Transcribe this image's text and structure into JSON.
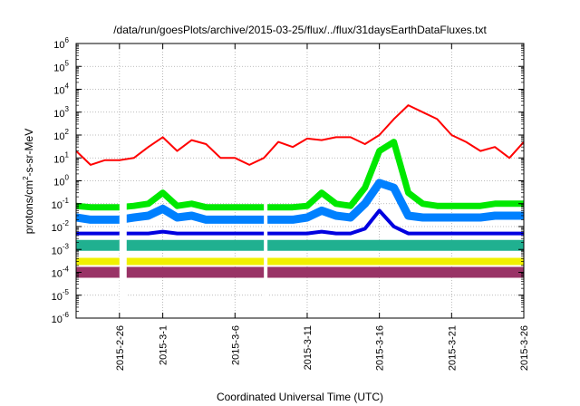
{
  "chart_data": {
    "type": "line",
    "title": "/data/run/goesPlots/archive/2015-03-25/flux/../flux/31daysEarthDataFluxes.txt",
    "xlabel": "Coordinated Universal Time (UTC)",
    "ylabel": "protons/cm2-s-sr-MeV",
    "ylabel_parts": {
      "main": "protons/cm",
      "sup": "2",
      "rest": "-s-sr-MeV"
    },
    "yscale": "log",
    "ylim_exp": [
      -6,
      6
    ],
    "y_tick_labels": [
      {
        "base": "10",
        "exp": "-6"
      },
      {
        "base": "10",
        "exp": "-5"
      },
      {
        "base": "10",
        "exp": "-4"
      },
      {
        "base": "10",
        "exp": "-3"
      },
      {
        "base": "10",
        "exp": "-2"
      },
      {
        "base": "10",
        "exp": "-1"
      },
      {
        "base": "10",
        "exp": "0"
      },
      {
        "base": "10",
        "exp": "1"
      },
      {
        "base": "10",
        "exp": "2"
      },
      {
        "base": "10",
        "exp": "3"
      },
      {
        "base": "10",
        "exp": "4"
      },
      {
        "base": "10",
        "exp": "5"
      },
      {
        "base": "10",
        "exp": "6"
      }
    ],
    "xlim": [
      "2015-02-23",
      "2015-03-26"
    ],
    "x_tick_labels": [
      {
        "label": "2015-2-26",
        "date": "2015-02-26"
      },
      {
        "label": "2015-3-1",
        "date": "2015-03-01"
      },
      {
        "label": "2015-3-6",
        "date": "2015-03-06"
      },
      {
        "label": "2015-3-11",
        "date": "2015-03-11"
      },
      {
        "label": "2015-3-16",
        "date": "2015-03-16"
      },
      {
        "label": "2015-3-21",
        "date": "2015-03-21"
      },
      {
        "label": "2015-3-26",
        "date": "2015-03-26"
      }
    ],
    "grid": true,
    "legend": "none",
    "data_gaps": [
      [
        "2015-02-26",
        "2015-02-26 12:00"
      ],
      [
        "2015-03-08",
        "2015-03-08 06:00"
      ]
    ],
    "series": [
      {
        "color": "#ff0000",
        "x": [
          "2015-02-23",
          "2015-02-24",
          "2015-02-25",
          "2015-02-26",
          "2015-02-27",
          "2015-02-28",
          "2015-03-01",
          "2015-03-02",
          "2015-03-03",
          "2015-03-04",
          "2015-03-05",
          "2015-03-06",
          "2015-03-07",
          "2015-03-08",
          "2015-03-09",
          "2015-03-10",
          "2015-03-11",
          "2015-03-12",
          "2015-03-13",
          "2015-03-14",
          "2015-03-15",
          "2015-03-16",
          "2015-03-17",
          "2015-03-18",
          "2015-03-19",
          "2015-03-20",
          "2015-03-21",
          "2015-03-22",
          "2015-03-23",
          "2015-03-24",
          "2015-03-25",
          "2015-03-26"
        ],
        "y": [
          20,
          5,
          8,
          8,
          10,
          30,
          80,
          20,
          60,
          40,
          10,
          10,
          5,
          10,
          50,
          30,
          70,
          60,
          80,
          80,
          40,
          100,
          500,
          2000,
          1000,
          500,
          100,
          50,
          20,
          30,
          10,
          50
        ]
      },
      {
        "color": "#00e800",
        "x": [
          "2015-02-23",
          "2015-02-24",
          "2015-02-25",
          "2015-02-26",
          "2015-02-27",
          "2015-02-28",
          "2015-03-01",
          "2015-03-02",
          "2015-03-03",
          "2015-03-04",
          "2015-03-05",
          "2015-03-06",
          "2015-03-07",
          "2015-03-08",
          "2015-03-09",
          "2015-03-10",
          "2015-03-11",
          "2015-03-12",
          "2015-03-13",
          "2015-03-14",
          "2015-03-15",
          "2015-03-16",
          "2015-03-17",
          "2015-03-18",
          "2015-03-19",
          "2015-03-20",
          "2015-03-21",
          "2015-03-22",
          "2015-03-23",
          "2015-03-24",
          "2015-03-25",
          "2015-03-26"
        ],
        "y": [
          0.08,
          0.07,
          0.07,
          0.07,
          0.08,
          0.1,
          0.3,
          0.08,
          0.1,
          0.07,
          0.07,
          0.07,
          0.07,
          0.07,
          0.07,
          0.07,
          0.08,
          0.3,
          0.1,
          0.08,
          0.5,
          20,
          50,
          0.3,
          0.1,
          0.08,
          0.08,
          0.08,
          0.08,
          0.1,
          0.1,
          0.1
        ]
      },
      {
        "color": "#0080ff",
        "x": [
          "2015-02-23",
          "2015-02-24",
          "2015-02-25",
          "2015-02-26",
          "2015-02-27",
          "2015-02-28",
          "2015-03-01",
          "2015-03-02",
          "2015-03-03",
          "2015-03-04",
          "2015-03-05",
          "2015-03-06",
          "2015-03-07",
          "2015-03-08",
          "2015-03-09",
          "2015-03-10",
          "2015-03-11",
          "2015-03-12",
          "2015-03-13",
          "2015-03-14",
          "2015-03-15",
          "2015-03-16",
          "2015-03-17",
          "2015-03-18",
          "2015-03-19",
          "2015-03-20",
          "2015-03-21",
          "2015-03-22",
          "2015-03-23",
          "2015-03-24",
          "2015-03-25",
          "2015-03-26"
        ],
        "y": [
          0.025,
          0.02,
          0.02,
          0.02,
          0.025,
          0.03,
          0.06,
          0.025,
          0.03,
          0.02,
          0.02,
          0.02,
          0.02,
          0.02,
          0.02,
          0.02,
          0.025,
          0.05,
          0.03,
          0.025,
          0.1,
          0.8,
          0.5,
          0.03,
          0.025,
          0.025,
          0.025,
          0.025,
          0.025,
          0.03,
          0.03,
          0.03
        ]
      },
      {
        "color": "#0000e0",
        "x": [
          "2015-02-23",
          "2015-02-24",
          "2015-02-25",
          "2015-02-26",
          "2015-02-27",
          "2015-02-28",
          "2015-03-01",
          "2015-03-02",
          "2015-03-03",
          "2015-03-04",
          "2015-03-05",
          "2015-03-06",
          "2015-03-07",
          "2015-03-08",
          "2015-03-09",
          "2015-03-10",
          "2015-03-11",
          "2015-03-12",
          "2015-03-13",
          "2015-03-14",
          "2015-03-15",
          "2015-03-16",
          "2015-03-17",
          "2015-03-18",
          "2015-03-19",
          "2015-03-20",
          "2015-03-21",
          "2015-03-22",
          "2015-03-23",
          "2015-03-24",
          "2015-03-25",
          "2015-03-26"
        ],
        "y": [
          0.005,
          0.005,
          0.005,
          0.005,
          0.005,
          0.005,
          0.006,
          0.005,
          0.005,
          0.005,
          0.005,
          0.005,
          0.005,
          0.005,
          0.005,
          0.005,
          0.005,
          0.006,
          0.005,
          0.005,
          0.008,
          0.05,
          0.01,
          0.005,
          0.005,
          0.005,
          0.005,
          0.005,
          0.005,
          0.005,
          0.005,
          0.005
        ]
      },
      {
        "color": "#20b090",
        "x": [
          "2015-02-23",
          "2015-03-26"
        ],
        "y": [
          0.0015,
          0.0015
        ]
      },
      {
        "color": "#f0f000",
        "x": [
          "2015-02-23",
          "2015-03-26"
        ],
        "y": [
          0.0003,
          0.0003
        ]
      },
      {
        "color": "#993366",
        "x": [
          "2015-02-23",
          "2015-03-26"
        ],
        "y": [
          0.0001,
          0.0001
        ]
      }
    ]
  }
}
